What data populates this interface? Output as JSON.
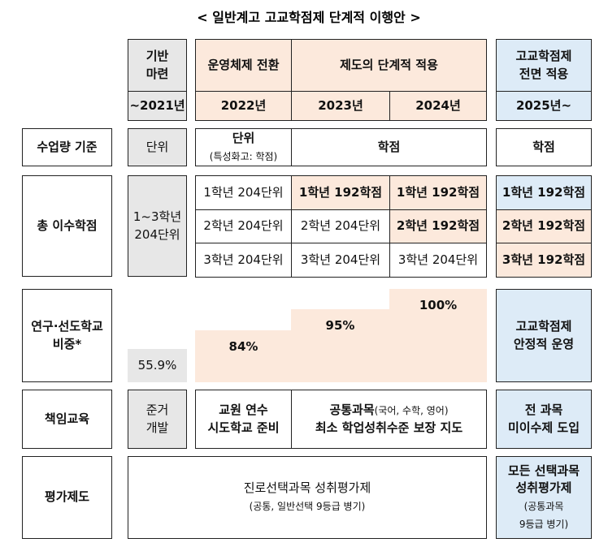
{
  "title": "< 일반계고 고교학점제 단계적 이행안 >",
  "header": {
    "foundation": [
      "기반",
      "마련"
    ],
    "transition": "운영체제 전환",
    "phased": "제도의 단계적 적용",
    "full": [
      "고교학점제",
      "전면 적용"
    ]
  },
  "years": [
    "~2021년",
    "2022년",
    "2023년",
    "2024년",
    "2025년~"
  ],
  "hours": {
    "label": "수업량 기준",
    "base": "단위",
    "y2022": [
      "단위",
      "(특성화고: 학점)"
    ],
    "phased": "학점",
    "full": "학점"
  },
  "credits": {
    "label": "총 이수학점",
    "base": [
      "1~3학년",
      "204단위"
    ],
    "y2022": [
      "1학년 204단위",
      "2학년 204단위",
      "3학년 204단위"
    ],
    "y2023": [
      "1학년 192학점",
      "2학년 204단위",
      "3학년 204단위"
    ],
    "y2024": [
      "1학년 192학점",
      "2학년 192학점",
      "3학년 204단위"
    ],
    "full": [
      "1학년 192학점",
      "2학년 192학점",
      "3학년 192학점"
    ]
  },
  "research": {
    "label": [
      "연구·선도학교",
      "비중*"
    ],
    "base": "55.9%",
    "y2022": "84%",
    "y2023": "95%",
    "y2024": "100%",
    "full": [
      "고교학점제",
      "안정적 운영"
    ]
  },
  "responsibility": {
    "label": "책임교육",
    "base": [
      "준거",
      "개발"
    ],
    "y2022": [
      "교원 연수",
      "시도학교 준비"
    ],
    "phased": [
      "공통과목",
      "(국어, 수학, 영어)",
      "최소 학업성취수준 보장 지도"
    ],
    "full": [
      "전 과목",
      "미이수제 도입"
    ]
  },
  "evaluation": {
    "label": "평가제도",
    "current": [
      "진로선택과목 성취평가제",
      "(공통, 일반선택 9등급 병기)"
    ],
    "full": [
      "모든 선택과목",
      "성취평가제",
      "(공통과목",
      "9등급 병기)"
    ]
  }
}
